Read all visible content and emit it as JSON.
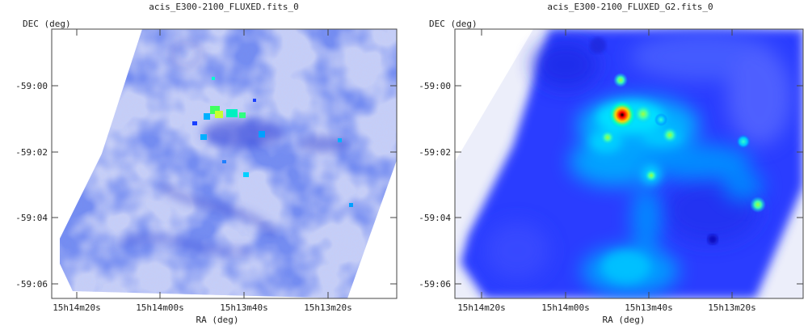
{
  "chart_data": [
    {
      "type": "heatmap",
      "title": "acis_E300-2100_FLUXED.fits_0",
      "xlabel": "RA (deg)",
      "ylabel": "DEC (deg)",
      "x_ticks": [
        "15h14m20s",
        "15h14m00s",
        "15h13m40s",
        "15h13m20s"
      ],
      "y_ticks": [
        "-59:00",
        "-59:02",
        "-59:04",
        "-59:06"
      ],
      "colormap": [
        "#ffffff",
        "#0000ff",
        "#00ffff",
        "#ffff00",
        "#ff0000",
        "#000000"
      ],
      "smoothing": "none",
      "grid": false
    },
    {
      "type": "heatmap",
      "title": "acis_E300-2100_FLUXED_G2.fits_0",
      "xlabel": "RA (deg)",
      "ylabel": "DEC (deg)",
      "x_ticks": [
        "15h14m20s",
        "15h14m00s",
        "15h13m40s",
        "15h13m20s"
      ],
      "y_ticks": [
        "-59:00",
        "-59:02",
        "-59:04",
        "-59:06"
      ],
      "colormap": [
        "#ffffff",
        "#0000ff",
        "#00ffff",
        "#ffff00",
        "#ff0000",
        "#000000"
      ],
      "smoothing": "gaussian sigma=2",
      "grid": false
    }
  ]
}
